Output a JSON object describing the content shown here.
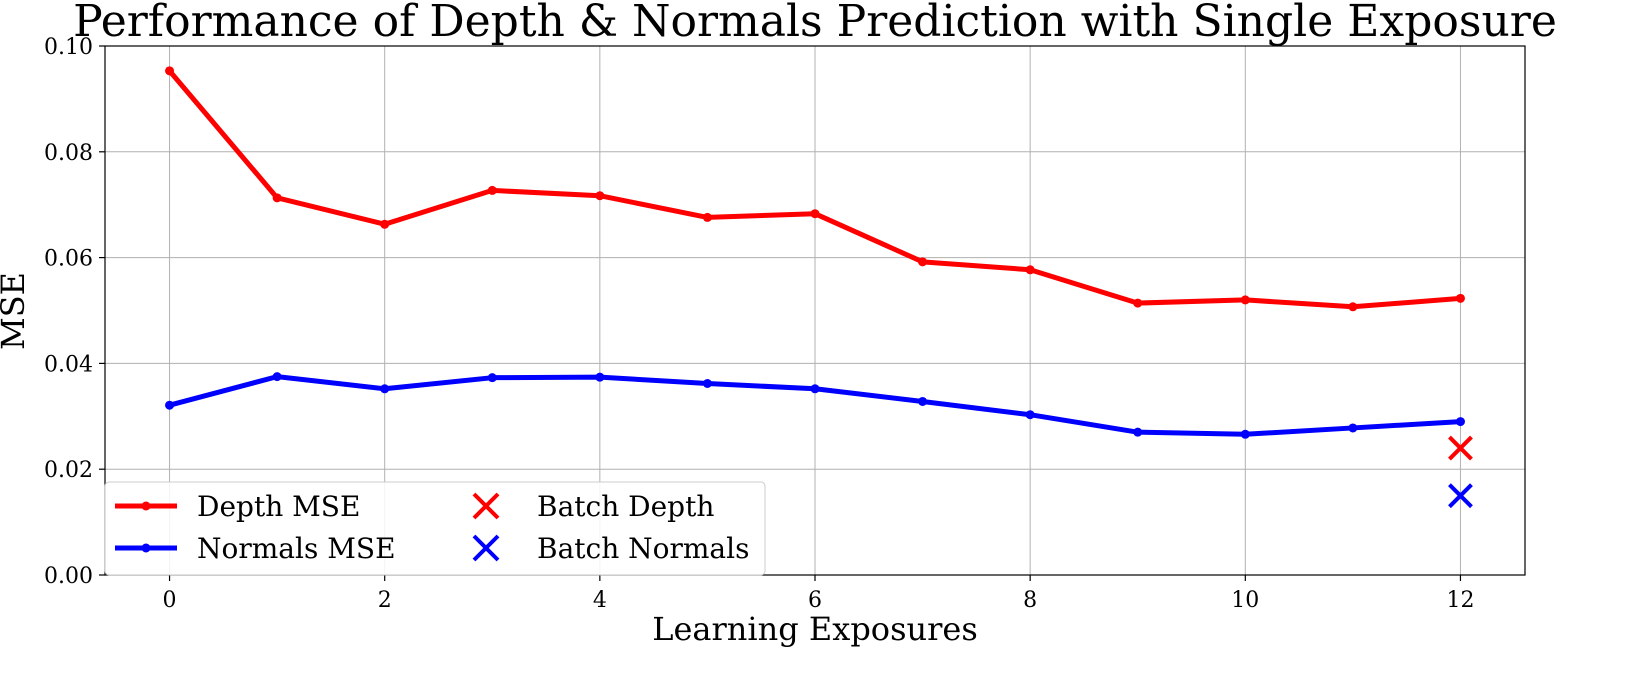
{
  "chart_data": {
    "type": "line",
    "title": "Performance of Depth & Normals Prediction with Single Exposure",
    "xlabel": "Learning Exposures",
    "ylabel": "MSE",
    "xlim": [
      -0.6,
      12.6
    ],
    "ylim": [
      0.0,
      0.1
    ],
    "x_ticks": [
      0,
      2,
      4,
      6,
      8,
      10,
      12
    ],
    "y_ticks": [
      0.0,
      0.02,
      0.04,
      0.06,
      0.08,
      0.1
    ],
    "grid": true,
    "legend_position": "lower-left",
    "x": [
      0,
      1,
      2,
      3,
      4,
      5,
      6,
      7,
      8,
      9,
      10,
      11,
      12
    ],
    "series": [
      {
        "name": "Depth MSE",
        "color": "#ff0000",
        "marker": "circle",
        "values": [
          0.0953,
          0.0713,
          0.0663,
          0.0727,
          0.0717,
          0.0676,
          0.0683,
          0.0592,
          0.0577,
          0.0514,
          0.052,
          0.0507,
          0.0523
        ]
      },
      {
        "name": "Normals MSE",
        "color": "#0000ff",
        "marker": "circle",
        "values": [
          0.0321,
          0.0375,
          0.0352,
          0.0373,
          0.0374,
          0.0362,
          0.0352,
          0.0328,
          0.0303,
          0.027,
          0.0266,
          0.0278,
          0.029
        ]
      }
    ],
    "points": [
      {
        "name": "Batch Depth",
        "color": "#ff0000",
        "marker": "x",
        "x": 12,
        "y": 0.024
      },
      {
        "name": "Batch Normals",
        "color": "#0000ff",
        "marker": "x",
        "x": 12,
        "y": 0.015
      }
    ]
  }
}
